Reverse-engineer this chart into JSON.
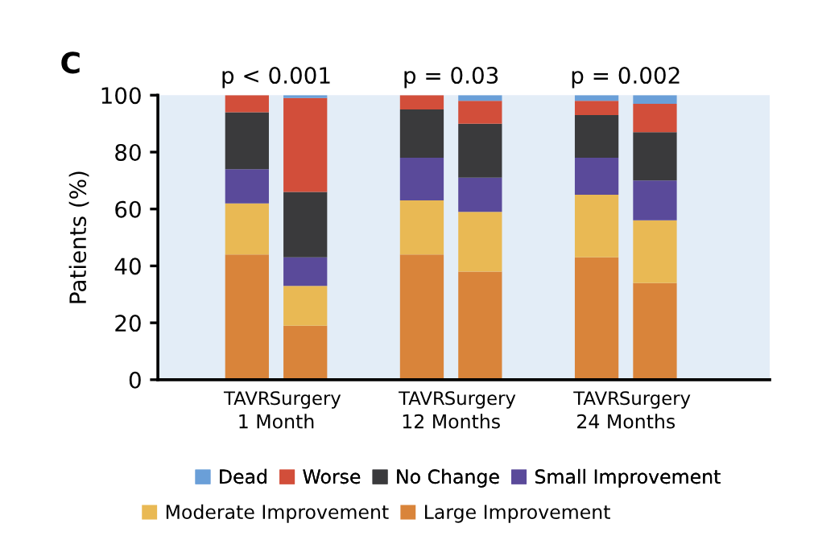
{
  "chart_data": {
    "type": "bar",
    "stacked": true,
    "title": "C",
    "ylabel": "Patients (%)",
    "categories": [
      "TAVR",
      "Surgery",
      null,
      "TAVR",
      "Surgery",
      null,
      "TAVR",
      "Surgery"
    ],
    "series": [
      {
        "name": "Large Improvement",
        "color": "#d9843a",
        "values": [
          44,
          19,
          null,
          44,
          38,
          null,
          43,
          34
        ]
      },
      {
        "name": "Moderate Improvement",
        "color": "#e9b954",
        "values": [
          18,
          14,
          null,
          19,
          21,
          null,
          22,
          22
        ]
      },
      {
        "name": "Small Improvement",
        "color": "#5a4a9a",
        "values": [
          12,
          10,
          null,
          15,
          12,
          null,
          13,
          14
        ]
      },
      {
        "name": "No Change",
        "color": "#3a3a3c",
        "values": [
          20,
          23,
          null,
          17,
          19,
          null,
          15,
          17
        ]
      },
      {
        "name": "Worse",
        "color": "#d24e3a",
        "values": [
          6,
          33,
          null,
          5,
          8,
          null,
          5,
          10
        ]
      },
      {
        "name": "Dead",
        "color": "#6a9fd8",
        "values": [
          0,
          1,
          null,
          0,
          2,
          null,
          2,
          3
        ]
      }
    ],
    "ylim": [
      0,
      100
    ],
    "yticks": [
      0,
      20,
      40,
      60,
      80,
      100
    ],
    "grid": false,
    "legend": "bottom",
    "annotations": [
      "p < 0.001",
      "p = 0.03",
      "p = 0.002",
      "1 Month",
      "12 Months",
      "24 Months"
    ]
  }
}
